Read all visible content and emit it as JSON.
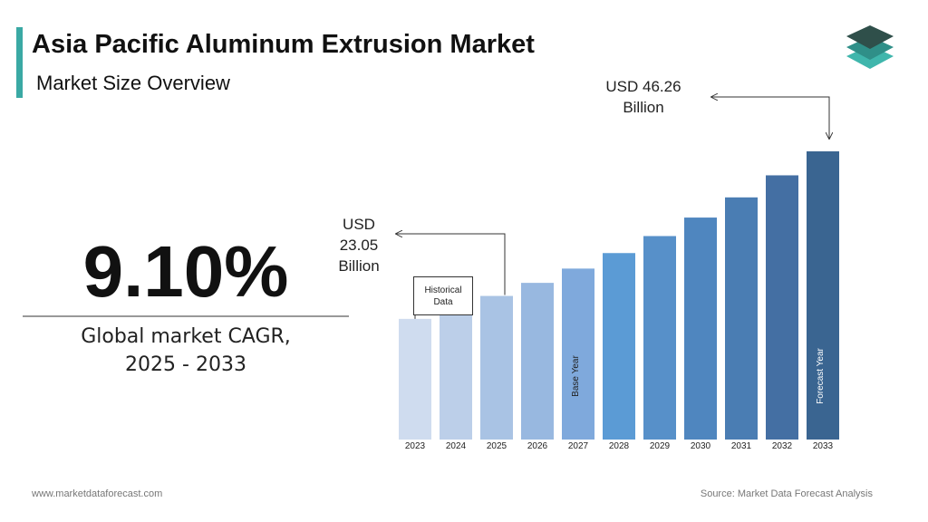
{
  "chart_data": {
    "type": "bar",
    "title": "Asia Pacific Aluminum Extrusion Market",
    "subtitle": "Market Size Overview",
    "kpi_value": "9.10%",
    "kpi_caption": "Global market CAGR, 2025 - 2033",
    "categories": [
      "2023",
      "2024",
      "2025",
      "2026",
      "2027",
      "2028",
      "2029",
      "2030",
      "2031",
      "2032",
      "2033"
    ],
    "values": [
      19.37,
      21.13,
      23.05,
      25.15,
      27.44,
      29.93,
      32.66,
      35.63,
      38.87,
      42.41,
      46.26
    ],
    "value_labels": [
      null,
      null,
      "USD 23.05 Billion",
      null,
      null,
      null,
      null,
      null,
      null,
      null,
      "USD 46.26 Billion"
    ],
    "colors": [
      "#cfdcef",
      "#bccfe9",
      "#a9c3e4",
      "#98b8e0",
      "#7fa9dc",
      "#5b9bd5",
      "#5790c9",
      "#4f86bf",
      "#4a7db3",
      "#446fa3",
      "#3a6591"
    ],
    "annotations": {
      "historical": "Historical Data",
      "base_year": "Base Year",
      "forecast_year": "Forecast Year"
    },
    "footer_left": "www.marketdataforecast.com",
    "footer_right": "Source: Market Data Forecast Analysis"
  }
}
